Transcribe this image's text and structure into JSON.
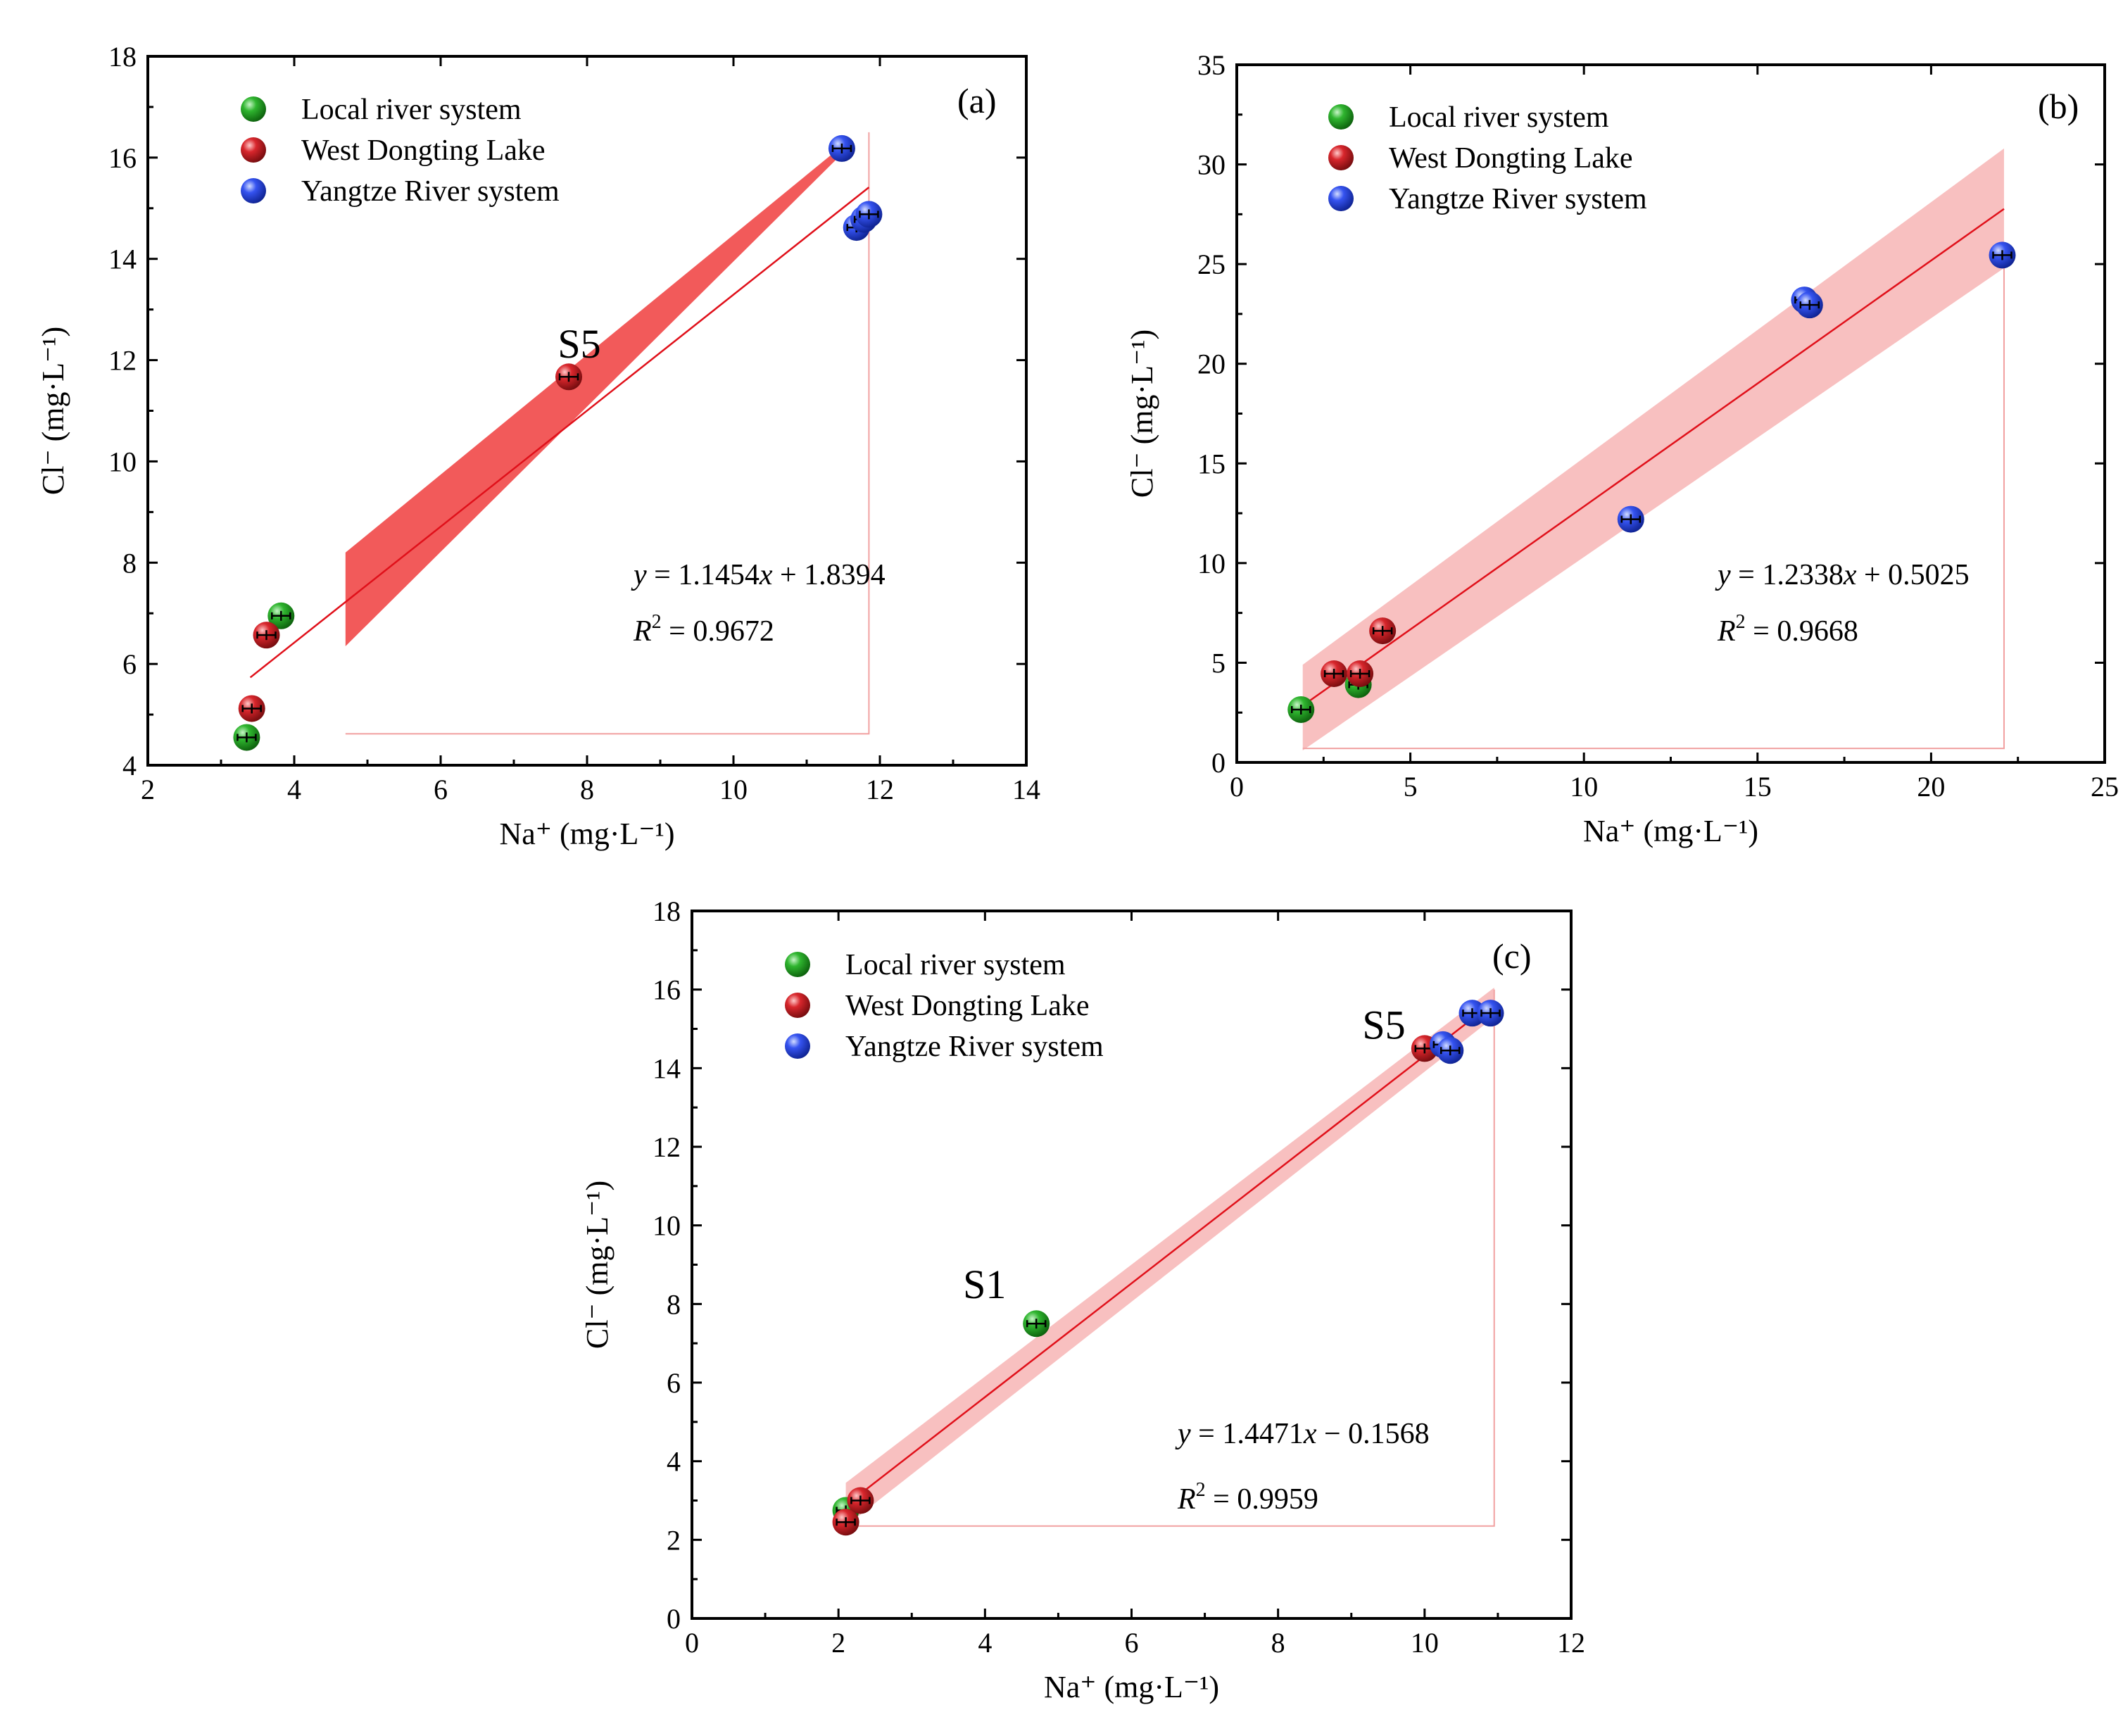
{
  "colors": {
    "local": "#1a9a1a",
    "west": "#c8161d",
    "yangtze": "#2d49e6",
    "fit": "#e0101a",
    "band_a": "#f25a5a",
    "band_bc": "#f7b5b5"
  },
  "legend": [
    "Local river system",
    "West Dongting Lake",
    "Yangtze River system"
  ],
  "chart_data": [
    {
      "panel": "(a)",
      "type": "scatter",
      "xlabel": "Na⁺ (mg·L⁻¹)",
      "ylabel": "Cl⁻ (mg·L⁻¹)",
      "xlim": [
        2,
        14
      ],
      "ylim": [
        4,
        18
      ],
      "xticks": [
        2,
        4,
        6,
        8,
        10,
        12,
        14
      ],
      "yticks": [
        4,
        6,
        8,
        10,
        12,
        14,
        16,
        18
      ],
      "equation": {
        "y": "y",
        "pre": " = 1.1454",
        "x": "x",
        "post": " + 1.8394"
      },
      "r2": {
        "R": "R",
        "sup": "2",
        "rest": " = 0.9672"
      },
      "fit": {
        "slope": 1.1454,
        "intercept": 1.8394,
        "x_range": [
          3.4,
          11.85
        ]
      },
      "band": {
        "x_range": [
          4.7,
          11.5
        ],
        "lower": [
          6.35,
          16.1
        ],
        "upper": [
          8.2,
          16.25
        ]
      },
      "frame": {
        "x_range": [
          4.7,
          11.85
        ],
        "y_bottom": 4.62,
        "y_top": 16.5
      },
      "annotations": [
        {
          "text": "S5",
          "x": 7.6,
          "y": 12.05
        }
      ],
      "series": [
        {
          "name": "Local river system",
          "group": "local",
          "points": [
            [
              3.35,
              4.55
            ],
            [
              3.82,
              6.95
            ]
          ]
        },
        {
          "name": "West Dongting Lake",
          "group": "west",
          "points": [
            [
              3.42,
              5.12
            ],
            [
              3.62,
              6.57
            ],
            [
              7.75,
              11.67
            ]
          ]
        },
        {
          "name": "Yangtze River system",
          "group": "yangtze",
          "points": [
            [
              11.48,
              16.18
            ],
            [
              11.68,
              14.62
            ],
            [
              11.78,
              14.78
            ],
            [
              11.85,
              14.88
            ]
          ]
        }
      ]
    },
    {
      "panel": "(b)",
      "type": "scatter",
      "xlabel": "Na⁺ (mg·L⁻¹)",
      "ylabel": "Cl⁻ (mg·L⁻¹)",
      "xlim": [
        0,
        25
      ],
      "ylim": [
        0,
        35
      ],
      "xticks": [
        0,
        5,
        10,
        15,
        20,
        25
      ],
      "yticks": [
        0,
        5,
        10,
        15,
        20,
        25,
        30,
        35
      ],
      "equation": {
        "y": "y",
        "pre": " = 1.2338",
        "x": "x",
        "post": " + 0.5025"
      },
      "r2": {
        "R": "R",
        "sup": "2",
        "rest": " = 0.9668"
      },
      "fit": {
        "slope": 1.2338,
        "intercept": 0.5025,
        "x_range": [
          1.9,
          22.1
        ]
      },
      "band": {
        "x_range": [
          1.9,
          22.1
        ],
        "lower": [
          0.6,
          24.8
        ],
        "upper": [
          4.9,
          30.8
        ]
      },
      "frame": {
        "x_range": [
          1.9,
          22.1
        ],
        "y_bottom": 0.7,
        "y_top": 25.6
      },
      "annotations": [],
      "series": [
        {
          "name": "Local river system",
          "group": "local",
          "points": [
            [
              1.85,
              2.65
            ],
            [
              3.5,
              3.9
            ]
          ]
        },
        {
          "name": "West Dongting Lake",
          "group": "west",
          "points": [
            [
              2.8,
              4.45
            ],
            [
              3.55,
              4.45
            ],
            [
              4.2,
              6.6
            ]
          ]
        },
        {
          "name": "Yangtze River system",
          "group": "yangtze",
          "points": [
            [
              11.35,
              12.2
            ],
            [
              16.35,
              23.2
            ],
            [
              16.5,
              22.95
            ],
            [
              22.05,
              25.45
            ]
          ]
        }
      ]
    },
    {
      "panel": "(c)",
      "type": "scatter",
      "xlabel": "Na⁺ (mg·L⁻¹)",
      "ylabel": "Cl⁻ (mg·L⁻¹)",
      "xlim": [
        0,
        12
      ],
      "ylim": [
        0,
        18
      ],
      "xticks": [
        0,
        2,
        4,
        6,
        8,
        10,
        12
      ],
      "yticks": [
        0,
        2,
        4,
        6,
        8,
        10,
        12,
        14,
        16,
        18
      ],
      "equation": {
        "y": "y",
        "pre": " = 1.4471",
        "x": "x",
        "post": " − 0.1568"
      },
      "r2": {
        "R": "R",
        "sup": "2",
        "rest": " = 0.9959"
      },
      "fit": {
        "slope": 1.4471,
        "intercept": -0.1568,
        "x_range": [
          2.1,
          10.95
        ]
      },
      "band": {
        "x_range": [
          2.1,
          10.95
        ],
        "lower": [
          2.35,
          15.3
        ],
        "upper": [
          3.45,
          16.05
        ]
      },
      "frame": {
        "x_range": [
          2.1,
          10.95
        ],
        "y_bottom": 2.35,
        "y_top": 16.0
      },
      "annotations": [
        {
          "text": "S1",
          "x": 3.7,
          "y": 8.15
        },
        {
          "text": "S5",
          "x": 9.15,
          "y": 14.75
        }
      ],
      "series": [
        {
          "name": "Local river system",
          "group": "local",
          "points": [
            [
              2.1,
              2.75
            ],
            [
              4.7,
              7.5
            ]
          ]
        },
        {
          "name": "West Dongting Lake",
          "group": "west",
          "points": [
            [
              2.1,
              2.45
            ],
            [
              2.3,
              3.0
            ],
            [
              10.0,
              14.5
            ]
          ]
        },
        {
          "name": "Yangtze River system",
          "group": "yangtze",
          "points": [
            [
              10.25,
              14.6
            ],
            [
              10.35,
              14.45
            ],
            [
              10.65,
              15.4
            ],
            [
              10.9,
              15.4
            ]
          ]
        }
      ]
    }
  ]
}
